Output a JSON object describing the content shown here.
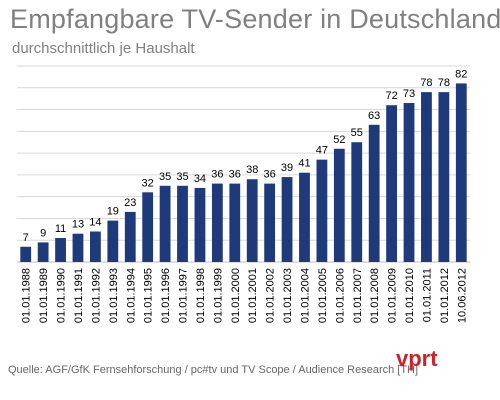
{
  "title": "Empfangbare TV-Sender in Deutschland",
  "subtitle": "durchschnittlich je Haushalt",
  "source": "Quelle: AGF/GfK Fernsehforschung / pc#tv und TV Scope / Audience Research [TH]",
  "logo_text": "vprt",
  "colors": {
    "bar": "#1f3a7a",
    "grid": "#d9d9d9",
    "text": "#000000",
    "title": "#808080",
    "logo": "#cc2229"
  },
  "chart_data": {
    "type": "bar",
    "title": "Empfangbare TV-Sender in Deutschland",
    "subtitle": "durchschnittlich je Haushalt",
    "categories": [
      "01.01.1988",
      "01.01.1989",
      "01.01.1990",
      "01.01.1991",
      "01.01.1992",
      "01.01.1993",
      "01.01.1994",
      "01.01.1995",
      "01.01.1996",
      "01.01.1997",
      "01.01.1998",
      "01.01.1999",
      "01.01.2000",
      "01.01.2001",
      "01.01.2002",
      "01.01.2003",
      "01.01.2004",
      "01.01.2005",
      "01.01.2006",
      "01.01.2007",
      "01.01.2008",
      "01.01.2009",
      "01.01.2010",
      "01.01.2011",
      "01.01.2012",
      "10.06.2012"
    ],
    "values": [
      7,
      9,
      11,
      13,
      14,
      19,
      23,
      32,
      35,
      35,
      34,
      36,
      36,
      38,
      36,
      39,
      41,
      47,
      52,
      55,
      63,
      72,
      73,
      78,
      78,
      82
    ],
    "ylim": [
      0,
      90
    ],
    "grid": true,
    "data_labels": true,
    "xlabel": "",
    "ylabel": ""
  }
}
